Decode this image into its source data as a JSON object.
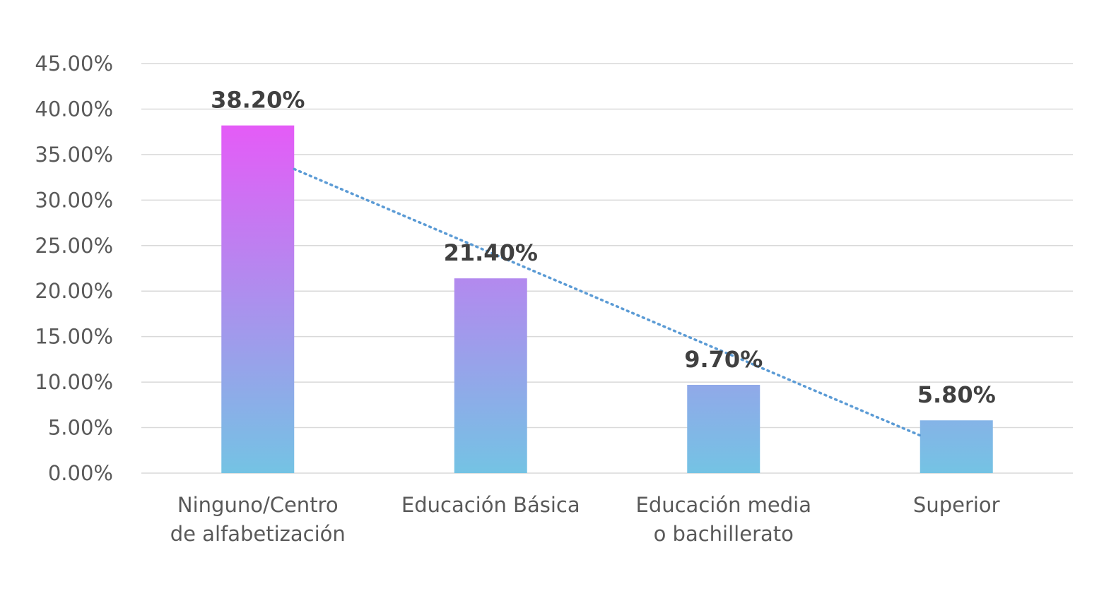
{
  "chart_data": {
    "type": "bar",
    "categories": [
      [
        "Ninguno/Centro",
        "de alfabetización"
      ],
      [
        "Educación Básica"
      ],
      [
        "Educación media",
        "o bachillerato"
      ],
      [
        "Superior"
      ]
    ],
    "values": [
      38.2,
      21.4,
      9.7,
      5.8
    ],
    "data_labels": [
      "38.20%",
      "21.40%",
      "9.70%",
      "5.80%"
    ],
    "y_ticks": [
      "0.00%",
      "5.00%",
      "10.00%",
      "15.00%",
      "20.00%",
      "25.00%",
      "30.00%",
      "35.00%",
      "40.00%",
      "45.00%"
    ],
    "ylim": [
      0,
      45
    ],
    "grid": true,
    "legend": "none",
    "trendline": {
      "type": "linear",
      "style": "dotted",
      "color": "#5b9bd5"
    },
    "colors": {
      "bar_gradient_top": "#e45cf7",
      "bar_gradient_bottom": "#74c3e4",
      "gridline": "#d9d9d9",
      "axis_text": "#595959",
      "label_text": "#404040"
    }
  }
}
